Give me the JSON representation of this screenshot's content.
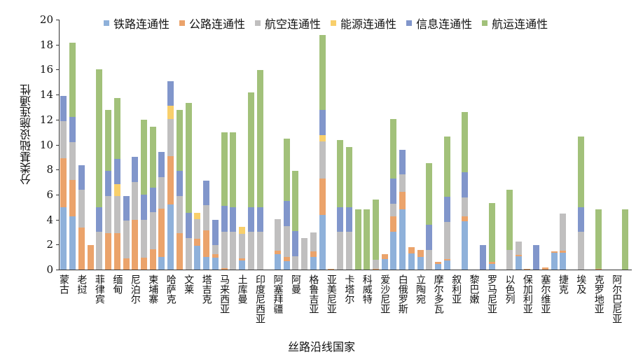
{
  "chart_data": {
    "type": "bar",
    "stacked": true,
    "title": "",
    "xlabel": "丝路沿线国家",
    "ylabel": "分类基础设施连通性",
    "ylim": [
      0,
      20
    ],
    "yticks": [
      0,
      2,
      4,
      6,
      8,
      10,
      12,
      14,
      16,
      18,
      20
    ],
    "legend_position": "top",
    "categories": [
      "蒙古",
      "",
      "老挝",
      "",
      "菲律宾",
      "",
      "缅甸",
      "",
      "尼泊尔",
      "",
      "柬埔寨",
      "",
      "哈萨克",
      "",
      "文莱",
      "",
      "塔吉克",
      "",
      "马来西亚",
      "",
      "土库曼",
      "",
      "印度尼西亚",
      "",
      "阿塞拜疆",
      "",
      "阿曼",
      "",
      "格鲁吉亚",
      "",
      "亚美尼亚",
      "",
      "卡塔尔",
      "",
      "科威特",
      "",
      "爱沙尼亚",
      "",
      "白俄罗斯",
      "",
      "立陶宛",
      "",
      "摩尔多瓦",
      "",
      "叙利亚",
      "",
      "黎巴嫩",
      "",
      "罗马尼亚",
      "",
      "以色列",
      "",
      "保加利亚",
      "",
      "塞尔维亚",
      "",
      "捷克",
      "",
      "埃及",
      "",
      "克罗地亚",
      "",
      "阿尔巴尼亚",
      ""
    ],
    "series": [
      {
        "name": "铁路连通性",
        "color": "#8FB1DA",
        "values": [
          5,
          4.24,
          0,
          0,
          0,
          0,
          0,
          0,
          0,
          0,
          0,
          1,
          5.2,
          0,
          0,
          1.9,
          1,
          0.97,
          0,
          0,
          0.75,
          0,
          0,
          0,
          1.23,
          0.67,
          0,
          0,
          1,
          4.39,
          0,
          0,
          0,
          0,
          0,
          0,
          0.82,
          3.03,
          4.8,
          1.31,
          1,
          0,
          0.45,
          0.75,
          0,
          3.88,
          0,
          0,
          0.45,
          0,
          0,
          1.08,
          0,
          0,
          0,
          1.34,
          1.34,
          0,
          0,
          0,
          0,
          0,
          0,
          0
        ]
      },
      {
        "name": "公路连通性",
        "color": "#EBA36B",
        "values": [
          3.9,
          2.95,
          3.36,
          1.96,
          0,
          2.9,
          2.9,
          0.9,
          4,
          0.97,
          1.64,
          3.87,
          3.86,
          2.9,
          0,
          0.56,
          2.14,
          0.26,
          0.1,
          0,
          0.15,
          0,
          0,
          0,
          0.28,
          0.36,
          0,
          0,
          0.46,
          2.87,
          0.06,
          0,
          0,
          0,
          0,
          0.05,
          0.43,
          1.23,
          1.44,
          0.5,
          0.59,
          0,
          0.17,
          0.09,
          0,
          0.38,
          0,
          0,
          0.17,
          0,
          0,
          0.1,
          0.06,
          0,
          0.15,
          0.12,
          0.17,
          0,
          0,
          0,
          0.06,
          0,
          0,
          0
        ]
      },
      {
        "name": "航空连通性",
        "color": "#C0BFBF",
        "values": [
          3,
          3,
          3,
          0,
          3,
          3,
          3,
          3,
          3,
          3,
          2.94,
          2.53,
          3,
          3,
          2.52,
          1.57,
          2,
          0.73,
          2.9,
          3,
          1.98,
          3,
          3,
          0,
          2.54,
          2.44,
          1.06,
          2.54,
          1.51,
          2.99,
          0,
          3,
          3,
          0,
          0,
          0.75,
          0,
          1.01,
          1.36,
          0,
          0,
          1.57,
          0,
          2.99,
          0,
          1.53,
          0,
          0,
          0,
          0,
          1.57,
          1.08,
          0,
          0,
          0,
          0,
          2.95,
          0,
          3,
          0,
          0,
          0,
          0,
          0
        ]
      },
      {
        "name": "能源连通性",
        "color": "#F8CF6B",
        "values": [
          0,
          0,
          0,
          0,
          0,
          0,
          0.95,
          0,
          0,
          0,
          0,
          0,
          1.05,
          0,
          0,
          0.51,
          0,
          0,
          0,
          0,
          0.56,
          0,
          0,
          0,
          0,
          0,
          0,
          0,
          0,
          0.51,
          0,
          0,
          0,
          0,
          0,
          0,
          0,
          0,
          0,
          0,
          0,
          0,
          0,
          0,
          0,
          0,
          0,
          0,
          0,
          0,
          0,
          0,
          0,
          0,
          0,
          0,
          0,
          0,
          0,
          0,
          0,
          0,
          0,
          0
        ]
      },
      {
        "name": "信息连通性",
        "color": "#8196CB",
        "values": [
          2,
          2,
          2,
          0,
          2,
          2,
          2,
          2,
          2,
          2,
          2,
          2,
          1.97,
          2,
          2,
          0,
          2,
          2,
          2.1,
          2,
          0,
          2,
          2,
          0,
          0,
          2.02,
          2.02,
          0,
          0,
          1.99,
          0,
          2,
          2,
          0,
          0,
          0,
          0,
          2.01,
          2,
          0,
          0,
          2.02,
          0,
          2,
          0,
          2.01,
          0,
          1.96,
          0,
          0,
          0,
          0,
          0,
          1.96,
          0,
          0,
          0,
          0,
          2,
          0,
          0,
          0,
          0,
          0
        ]
      },
      {
        "name": "航运连通性",
        "color": "#A2C17A",
        "values": [
          0,
          5.95,
          0,
          0,
          11,
          4.87,
          4.9,
          0,
          0,
          6,
          4.86,
          0,
          0,
          4.87,
          8.83,
          0,
          0,
          0,
          5.9,
          5.98,
          0,
          9.17,
          10.97,
          0,
          0,
          4.99,
          4.82,
          0,
          0,
          6.02,
          0,
          5.36,
          4.8,
          4.82,
          4.82,
          4.8,
          0,
          4.76,
          0,
          0,
          0,
          4.93,
          0,
          4.81,
          0,
          4.8,
          0,
          0,
          4.7,
          0,
          4.82,
          0,
          0,
          0,
          0,
          0,
          0,
          0,
          5.64,
          0,
          4.76,
          0,
          0,
          4.82
        ]
      }
    ]
  }
}
